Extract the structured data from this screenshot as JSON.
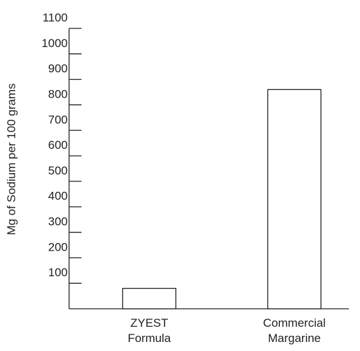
{
  "chart_data": {
    "type": "bar",
    "y_label": "Mg of Sodium per 100 grams",
    "categories": [
      "ZYEST Formula",
      "Commercial Margarine"
    ],
    "values": [
      80,
      860
    ],
    "color": "#ffffff",
    "ylim": [
      0,
      1100
    ],
    "yticks": [
      100,
      200,
      300,
      400,
      500,
      600,
      700,
      800,
      900,
      1000,
      1100
    ]
  }
}
